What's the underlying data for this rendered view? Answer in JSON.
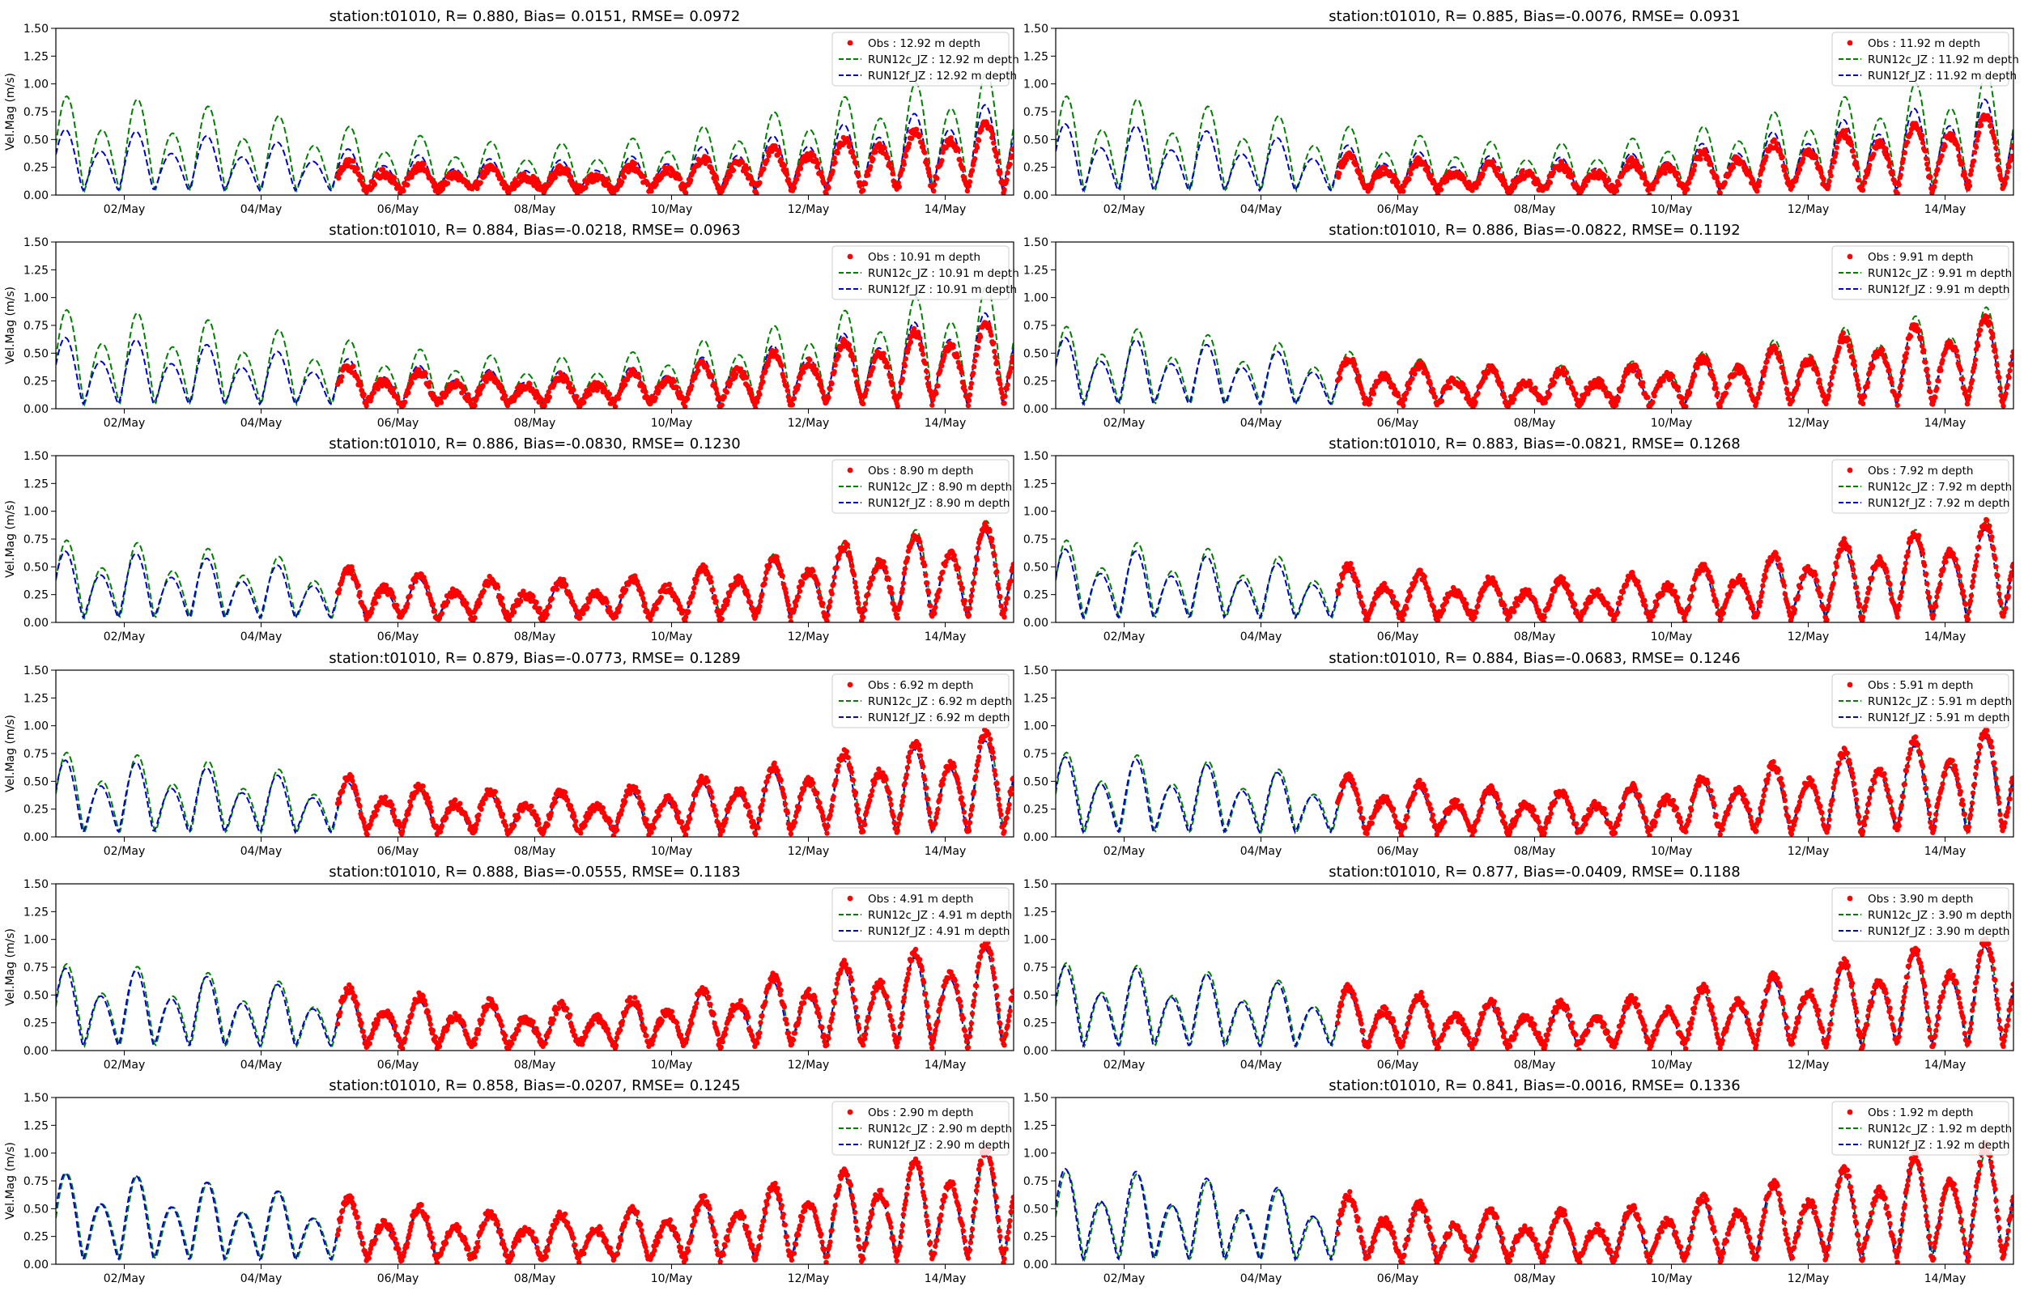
{
  "figure": {
    "shared": {
      "type": "line",
      "xlabel": "",
      "ylabel": "Vel.Mag (m/s)",
      "ylim": [
        0,
        1.5
      ],
      "yticks": [
        "0.00",
        "0.25",
        "0.50",
        "0.75",
        "1.00",
        "1.25",
        "1.50"
      ],
      "x_tick_labels": [
        "02/May",
        "04/May",
        "06/May",
        "08/May",
        "10/May",
        "12/May",
        "14/May"
      ],
      "xlim_days": [
        1.0,
        15.0
      ],
      "obs_start_day": 5.12,
      "grid": false,
      "legend_position": "top-right"
    },
    "colors": {
      "obs": "#ff0000",
      "run12c": "#008000",
      "run12f": "#0000cc"
    }
  },
  "chart_data": [
    {
      "type": "line",
      "title": "station:t01010, R= 0.880, Bias= 0.0151, RMSE= 0.0972",
      "depth": "12.92",
      "legend": [
        "Obs : 12.92 m depth",
        "RUN12c_JZ : 12.92 m depth",
        "RUN12f_JZ : 12.92 m depth"
      ],
      "ylabel": "Vel.Mag (m/s)",
      "ylim": [
        0,
        1.5
      ],
      "amp_obs": 0.38,
      "amp_c": 0.85,
      "amp_f": 0.55,
      "trend": 0.25
    },
    {
      "type": "line",
      "title": "station:t01010, R= 0.885, Bias=-0.0076, RMSE= 0.0931",
      "depth": "11.92",
      "legend": [
        "Obs : 11.92 m depth",
        "RUN12c_JZ : 11.92 m depth",
        "RUN12f_JZ : 11.92 m depth"
      ],
      "ylabel": "Vel.Mag (m/s)",
      "ylim": [
        0,
        1.5
      ],
      "amp_obs": 0.45,
      "amp_c": 0.85,
      "amp_f": 0.6,
      "trend": 0.25
    },
    {
      "type": "line",
      "title": "station:t01010, R= 0.884, Bias=-0.0218, RMSE= 0.0963",
      "depth": "10.91",
      "legend": [
        "Obs : 10.91 m depth",
        "RUN12c_JZ : 10.91 m depth",
        "RUN12f_JZ : 10.91 m depth"
      ],
      "ylabel": "Vel.Mag (m/s)",
      "ylim": [
        0,
        1.5
      ],
      "amp_obs": 0.5,
      "amp_c": 0.85,
      "amp_f": 0.6,
      "trend": 0.25
    },
    {
      "type": "line",
      "title": "station:t01010, R= 0.886, Bias=-0.0822, RMSE= 0.1192",
      "depth": "9.91",
      "legend": [
        "Obs : 9.91 m depth",
        "RUN12c_JZ : 9.91 m depth",
        "RUN12f_JZ : 9.91 m depth"
      ],
      "ylabel": "Vel.Mag (m/s)",
      "ylim": [
        0,
        1.5
      ],
      "amp_obs": 0.6,
      "amp_c": 0.7,
      "amp_f": 0.6,
      "trend": 0.2
    },
    {
      "type": "line",
      "title": "station:t01010, R= 0.886, Bias=-0.0830, RMSE= 0.1230",
      "depth": "8.90",
      "legend": [
        "Obs : 8.90 m depth",
        "RUN12c_JZ : 8.90 m depth",
        "RUN12f_JZ : 8.90 m depth"
      ],
      "ylabel": "Vel.Mag (m/s)",
      "ylim": [
        0,
        1.5
      ],
      "amp_obs": 0.65,
      "amp_c": 0.7,
      "amp_f": 0.6,
      "trend": 0.2
    },
    {
      "type": "line",
      "title": "station:t01010, R= 0.883, Bias=-0.0821, RMSE= 0.1268",
      "depth": "7.92",
      "legend": [
        "Obs : 7.92 m depth",
        "RUN12c_JZ : 7.92 m depth",
        "RUN12f_JZ : 7.92 m depth"
      ],
      "ylabel": "Vel.Mag (m/s)",
      "ylim": [
        0,
        1.5
      ],
      "amp_obs": 0.68,
      "amp_c": 0.7,
      "amp_f": 0.62,
      "trend": 0.2
    },
    {
      "type": "line",
      "title": "station:t01010, R= 0.879, Bias=-0.0773, RMSE= 0.1289",
      "depth": "6.92",
      "legend": [
        "Obs : 6.92 m depth",
        "RUN12c_JZ : 6.92 m depth",
        "RUN12f_JZ : 6.92 m depth"
      ],
      "ylabel": "Vel.Mag (m/s)",
      "ylim": [
        0,
        1.5
      ],
      "amp_obs": 0.72,
      "amp_c": 0.72,
      "amp_f": 0.65,
      "trend": 0.2
    },
    {
      "type": "line",
      "title": "station:t01010, R= 0.884, Bias=-0.0683, RMSE= 0.1246",
      "depth": "5.91",
      "legend": [
        "Obs : 5.91 m depth",
        "RUN12c_JZ : 5.91 m depth",
        "RUN12f_JZ : 5.91 m depth"
      ],
      "ylabel": "Vel.Mag (m/s)",
      "ylim": [
        0,
        1.5
      ],
      "amp_obs": 0.74,
      "amp_c": 0.72,
      "amp_f": 0.68,
      "trend": 0.2
    },
    {
      "type": "line",
      "title": "station:t01010, R= 0.888, Bias=-0.0555, RMSE= 0.1183",
      "depth": "4.91",
      "legend": [
        "Obs : 4.91 m depth",
        "RUN12c_JZ : 4.91 m depth",
        "RUN12f_JZ : 4.91 m depth"
      ],
      "ylabel": "Vel.Mag (m/s)",
      "ylim": [
        0,
        1.5
      ],
      "amp_obs": 0.76,
      "amp_c": 0.74,
      "amp_f": 0.7,
      "trend": 0.2
    },
    {
      "type": "line",
      "title": "station:t01010, R= 0.877, Bias=-0.0409, RMSE= 0.1188",
      "depth": "3.90",
      "legend": [
        "Obs : 3.90 m depth",
        "RUN12c_JZ : 3.90 m depth",
        "RUN12f_JZ : 3.90 m depth"
      ],
      "ylabel": "Vel.Mag (m/s)",
      "ylim": [
        0,
        1.5
      ],
      "amp_obs": 0.78,
      "amp_c": 0.75,
      "amp_f": 0.72,
      "trend": 0.2
    },
    {
      "type": "line",
      "title": "station:t01010, R= 0.858, Bias=-0.0207, RMSE= 0.1245",
      "depth": "2.90",
      "legend": [
        "Obs : 2.90 m depth",
        "RUN12c_JZ : 2.90 m depth",
        "RUN12f_JZ : 2.90 m depth"
      ],
      "ylabel": "Vel.Mag (m/s)",
      "ylim": [
        0,
        1.5
      ],
      "amp_obs": 0.82,
      "amp_c": 0.78,
      "amp_f": 0.78,
      "trend": 0.2
    },
    {
      "type": "line",
      "title": "station:t01010, R= 0.841, Bias=-0.0016, RMSE= 0.1336",
      "depth": "1.92",
      "legend": [
        "Obs : 1.92 m depth",
        "RUN12c_JZ : 1.92 m depth",
        "RUN12f_JZ : 1.92 m depth"
      ],
      "ylabel": "Vel.Mag (m/s)",
      "ylim": [
        0,
        1.5
      ],
      "amp_obs": 0.85,
      "amp_c": 0.8,
      "amp_f": 0.82,
      "trend": 0.2
    }
  ]
}
